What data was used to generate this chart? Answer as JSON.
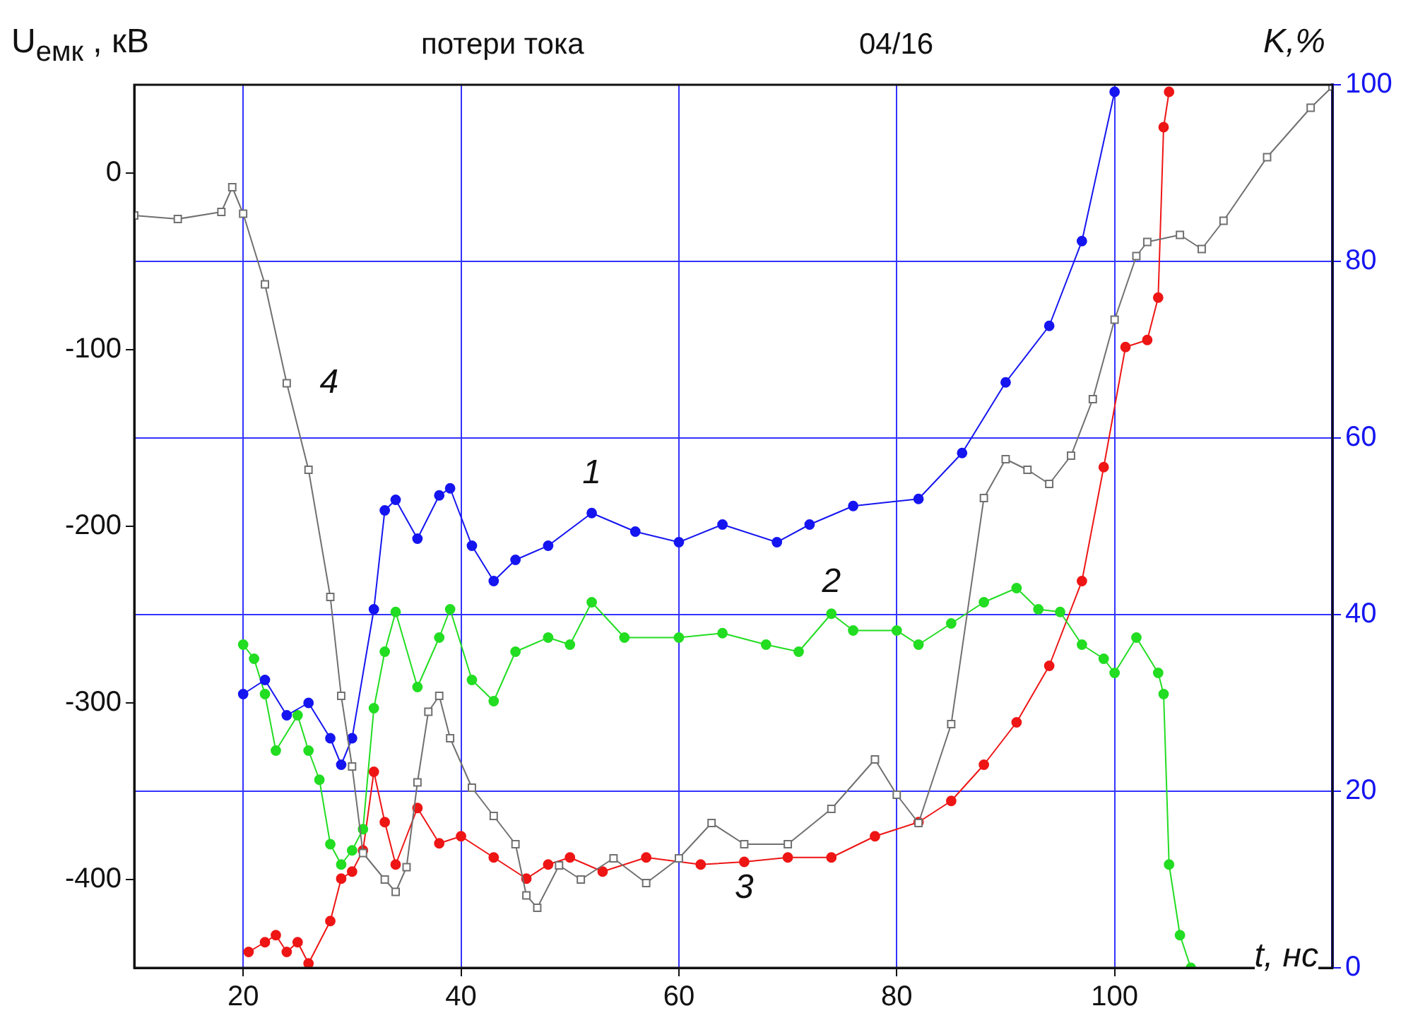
{
  "chart_data": {
    "type": "line",
    "title": "потери тока",
    "subtitle": "04/16",
    "ylabel": "U$_{емк}$ , кВ",
    "y2label": "K,%",
    "xlabel": "t, нс",
    "xlim": [
      10,
      120
    ],
    "xticks": [
      20,
      40,
      60,
      80,
      100
    ],
    "ylim": [
      -450,
      50
    ],
    "yticks": [
      -400,
      -300,
      -200,
      -100,
      0
    ],
    "y2lim": [
      0,
      100
    ],
    "y2ticks": [
      0,
      20,
      40,
      60,
      80,
      100
    ],
    "grid": true,
    "legend": false,
    "series": [
      {
        "name": "1",
        "color": "#1515f0",
        "marker": "circle",
        "axis": "y2",
        "x": [
          20,
          22,
          24,
          26,
          28,
          29,
          30,
          32,
          33,
          34,
          36,
          38,
          39,
          41,
          43,
          45,
          48,
          52,
          56,
          60,
          64,
          69,
          72,
          76,
          82,
          86,
          90,
          94,
          97,
          100
        ],
        "values": [
          31,
          32.6,
          28.6,
          30,
          26,
          23,
          26,
          40.6,
          51.8,
          53,
          48.6,
          53.5,
          54.3,
          47.8,
          43.8,
          46.2,
          47.8,
          51.5,
          49.4,
          48.2,
          50.2,
          48.2,
          50.2,
          52.3,
          53.1,
          58.3,
          66.3,
          72.7,
          82.3,
          99.2
        ]
      },
      {
        "name": "2",
        "color": "#22dd22",
        "marker": "circle",
        "axis": "y2",
        "x": [
          20,
          21,
          22,
          23,
          25,
          26,
          27,
          28,
          29,
          30,
          31,
          32,
          33,
          34,
          36,
          38,
          39,
          41,
          43,
          45,
          48,
          50,
          52,
          55,
          60,
          64,
          68,
          71,
          74,
          76,
          80,
          82,
          85,
          88,
          91,
          93,
          95,
          97,
          99,
          100,
          102,
          104,
          104.5,
          105,
          106,
          107
        ],
        "values": [
          36.6,
          35,
          31,
          24.6,
          28.6,
          24.6,
          21.3,
          14,
          11.7,
          13.3,
          15.7,
          29.4,
          35.8,
          40.3,
          31.8,
          37.4,
          40.6,
          32.6,
          30.2,
          35.8,
          37.4,
          36.6,
          41.4,
          37.4,
          37.4,
          37.9,
          36.6,
          35.8,
          40.1,
          38.2,
          38.2,
          36.6,
          39,
          41.4,
          43,
          40.6,
          40.3,
          36.6,
          35,
          33.4,
          37.4,
          33.4,
          31,
          11.7,
          3.7,
          0
        ]
      },
      {
        "name": "3",
        "color": "#ee1515",
        "marker": "circle",
        "axis": "y2",
        "x": [
          20.5,
          22,
          23,
          24,
          25,
          26,
          28,
          29,
          30,
          31,
          32,
          33,
          34,
          36,
          38,
          40,
          43,
          46,
          48,
          50,
          53,
          57,
          62,
          66,
          70,
          74,
          78,
          82,
          85,
          88,
          91,
          94,
          97,
          99,
          101,
          103,
          104,
          104.5,
          105
        ],
        "values": [
          1.8,
          2.9,
          3.7,
          1.8,
          2.9,
          0.5,
          5.3,
          10.1,
          10.9,
          13.3,
          22.2,
          16.5,
          11.7,
          18.1,
          14.1,
          14.9,
          12.5,
          10.1,
          11.7,
          12.5,
          10.9,
          12.5,
          11.7,
          12,
          12.5,
          12.5,
          14.9,
          16.5,
          18.9,
          23,
          27.8,
          34.2,
          43.8,
          56.7,
          70.3,
          71.1,
          75.9,
          95.2,
          99.2
        ]
      },
      {
        "name": "4",
        "color": "#707070",
        "marker": "square",
        "axis": "y",
        "x": [
          10,
          14,
          18,
          19,
          20,
          22,
          24,
          26,
          28,
          29,
          30,
          31,
          33,
          34,
          35,
          36,
          37,
          38,
          39,
          41,
          43,
          45,
          46,
          47,
          49,
          51,
          54,
          57,
          60,
          63,
          66,
          70,
          74,
          78,
          80,
          82,
          85,
          88,
          90,
          92,
          94,
          96,
          98,
          100,
          102,
          103,
          106,
          108,
          110,
          114,
          118,
          120
        ],
        "values": [
          -24,
          -26,
          -22,
          -8,
          -23,
          -63,
          -119,
          -168,
          -240,
          -296,
          -336,
          -385,
          -400,
          -407,
          -393,
          -345,
          -305,
          -296,
          -320,
          -348,
          -364,
          -380,
          -409,
          -416,
          -392,
          -400,
          -388,
          -402,
          -388,
          -368,
          -380,
          -380,
          -360,
          -332,
          -352,
          -368,
          -312,
          -184,
          -162,
          -168,
          -176,
          -160,
          -128,
          -83,
          -47,
          -39,
          -35,
          -43,
          -27,
          9,
          37,
          49
        ]
      }
    ]
  }
}
